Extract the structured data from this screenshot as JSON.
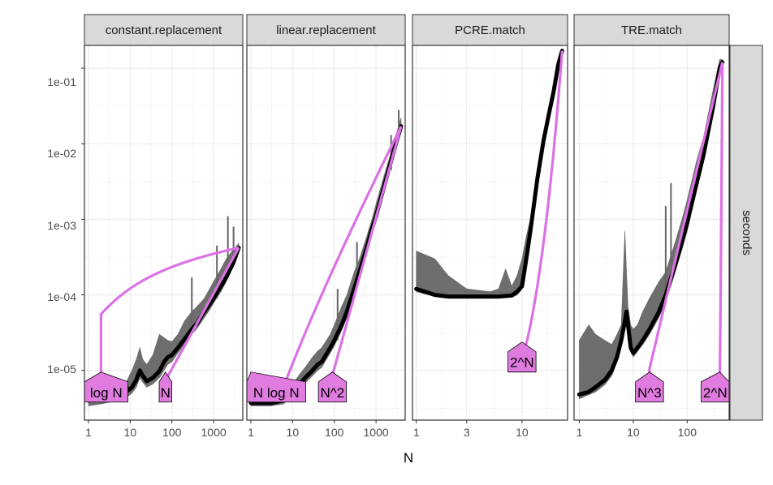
{
  "chart_data": {
    "type": "line",
    "x_axis_title": "N",
    "y_strip_label": "seconds",
    "y_ticks": [
      "1e-05",
      "1e-04",
      "1e-03",
      "1e-02",
      "1e-01"
    ],
    "y_tick_values": [
      1e-05,
      0.0001,
      0.001,
      0.01,
      0.1
    ],
    "ylim": [
      2.2e-06,
      0.2
    ],
    "y_scale": "log10",
    "grid": true,
    "colors": {
      "median_line": "#000000",
      "min_max_band": "#666666",
      "asymptote": "#dc71e6",
      "label_fill": "#e07be0"
    },
    "panels": [
      {
        "title": "constant.replacement",
        "xlim": [
          0.8,
          5000
        ],
        "x_ticks": [
          "1",
          "10",
          "100",
          "1000"
        ],
        "x_tick_values": [
          1,
          10,
          100,
          1000
        ],
        "median": [
          [
            1,
            4e-06
          ],
          [
            2,
            4.2e-06
          ],
          [
            5,
            4.6e-06
          ],
          [
            8,
            5.2e-06
          ],
          [
            11,
            6e-06
          ],
          [
            14,
            7.5e-06
          ],
          [
            17,
            1e-05
          ],
          [
            20,
            8.5e-06
          ],
          [
            25,
            7.2e-06
          ],
          [
            35,
            8e-06
          ],
          [
            50,
            9.8e-06
          ],
          [
            65,
            1.3e-05
          ],
          [
            80,
            1.5e-05
          ],
          [
            100,
            1.6e-05
          ],
          [
            140,
            2e-05
          ],
          [
            200,
            2.6e-05
          ],
          [
            300,
            3.5e-05
          ],
          [
            400,
            4.2e-05
          ],
          [
            600,
            6e-05
          ],
          [
            800,
            7.5e-05
          ],
          [
            1000,
            9e-05
          ],
          [
            1500,
            0.00013
          ],
          [
            2000,
            0.00017
          ],
          [
            3000,
            0.00027
          ],
          [
            4000,
            0.00042
          ]
        ],
        "upper": [
          [
            1,
            5e-06
          ],
          [
            2,
            5.2e-06
          ],
          [
            5,
            5.8e-06
          ],
          [
            8,
            7e-06
          ],
          [
            11,
            1e-05
          ],
          [
            14,
            1.4e-05
          ],
          [
            17,
            2e-05
          ],
          [
            20,
            1.4e-05
          ],
          [
            25,
            1.2e-05
          ],
          [
            35,
            1.6e-05
          ],
          [
            50,
            3e-05
          ],
          [
            80,
            2.5e-05
          ],
          [
            100,
            2.4e-05
          ],
          [
            140,
            3e-05
          ],
          [
            200,
            4.5e-05
          ],
          [
            300,
            6e-05
          ],
          [
            400,
            7e-05
          ],
          [
            600,
            9e-05
          ],
          [
            800,
            0.00012
          ],
          [
            1000,
            0.00015
          ],
          [
            1500,
            0.00022
          ],
          [
            2000,
            0.0003
          ],
          [
            3000,
            0.0004
          ],
          [
            4000,
            0.00048
          ]
        ],
        "lower": [
          [
            1,
            3.4e-06
          ],
          [
            2,
            3.6e-06
          ],
          [
            5,
            4e-06
          ],
          [
            8,
            4.4e-06
          ],
          [
            11,
            5e-06
          ],
          [
            14,
            6e-06
          ],
          [
            17,
            8e-06
          ],
          [
            20,
            7e-06
          ],
          [
            25,
            6e-06
          ],
          [
            35,
            6.6e-06
          ],
          [
            50,
            8e-06
          ],
          [
            80,
            1.2e-05
          ],
          [
            100,
            1.3e-05
          ],
          [
            140,
            1.7e-05
          ],
          [
            200,
            2.2e-05
          ],
          [
            300,
            3e-05
          ],
          [
            400,
            3.6e-05
          ],
          [
            600,
            5e-05
          ],
          [
            800,
            6.3e-05
          ],
          [
            1000,
            7.8e-05
          ],
          [
            1500,
            0.00011
          ],
          [
            2000,
            0.00015
          ],
          [
            3000,
            0.00024
          ],
          [
            4000,
            0.00038
          ]
        ],
        "spikes": [
          [
            300,
            0.00017
          ],
          [
            1200,
            0.00045
          ],
          [
            2200,
            0.0011
          ],
          [
            3000,
            0.0008
          ]
        ],
        "asymptotes": [
          {
            "label": "log N",
            "anchor": [
              2,
              5.8e-06
            ]
          },
          {
            "label": "N",
            "anchor": [
              70,
              5.8e-06
            ]
          }
        ]
      },
      {
        "title": "linear.replacement",
        "xlim": [
          0.8,
          5000
        ],
        "x_ticks": [
          "1",
          "10",
          "100",
          "1000"
        ],
        "x_tick_values": [
          1,
          10,
          100,
          1000
        ],
        "median": [
          [
            1,
            3.7e-06
          ],
          [
            3,
            3.7e-06
          ],
          [
            6,
            4e-06
          ],
          [
            10,
            5e-06
          ],
          [
            15,
            6.6e-06
          ],
          [
            20,
            8e-06
          ],
          [
            30,
            1e-05
          ],
          [
            40,
            1.2e-05
          ],
          [
            50,
            1.3e-05
          ],
          [
            80,
            2e-05
          ],
          [
            100,
            2.5e-05
          ],
          [
            150,
            4e-05
          ],
          [
            200,
            6e-05
          ],
          [
            300,
            0.00012
          ],
          [
            400,
            0.0002
          ],
          [
            600,
            0.00042
          ],
          [
            800,
            0.00075
          ],
          [
            1000,
            0.0011
          ],
          [
            1500,
            0.0025
          ],
          [
            2000,
            0.0045
          ],
          [
            3000,
            0.01
          ],
          [
            4000,
            0.017
          ]
        ],
        "upper": [
          [
            1,
            4.6e-06
          ],
          [
            3,
            4.6e-06
          ],
          [
            6,
            5e-06
          ],
          [
            10,
            6.5e-06
          ],
          [
            15,
            9e-06
          ],
          [
            20,
            1.1e-05
          ],
          [
            30,
            1.5e-05
          ],
          [
            40,
            1.8e-05
          ],
          [
            50,
            2e-05
          ],
          [
            80,
            3e-05
          ],
          [
            100,
            4e-05
          ],
          [
            150,
            7e-05
          ],
          [
            200,
            0.0001
          ],
          [
            300,
            0.0002
          ],
          [
            400,
            0.0003
          ],
          [
            600,
            0.0006
          ],
          [
            800,
            0.001
          ],
          [
            1000,
            0.0016
          ],
          [
            1500,
            0.0035
          ],
          [
            2000,
            0.006
          ],
          [
            3000,
            0.013
          ],
          [
            4000,
            0.022
          ]
        ],
        "lower": [
          [
            1,
            3.4e-06
          ],
          [
            3,
            3.4e-06
          ],
          [
            6,
            3.6e-06
          ],
          [
            10,
            4.4e-06
          ],
          [
            15,
            5.6e-06
          ],
          [
            20,
            6.8e-06
          ],
          [
            30,
            8.5e-06
          ],
          [
            40,
            1e-05
          ],
          [
            50,
            1.1e-05
          ],
          [
            80,
            1.7e-05
          ],
          [
            100,
            2.1e-05
          ],
          [
            150,
            3.4e-05
          ],
          [
            200,
            5e-05
          ],
          [
            300,
            0.0001
          ],
          [
            400,
            0.00017
          ],
          [
            600,
            0.00036
          ],
          [
            800,
            0.00064
          ],
          [
            1000,
            0.00095
          ],
          [
            1500,
            0.0021
          ],
          [
            2000,
            0.0038
          ],
          [
            3000,
            0.0088
          ],
          [
            4000,
            0.015
          ]
        ],
        "spikes": [
          [
            120,
            0.00012
          ],
          [
            350,
            0.0005
          ],
          [
            2300,
            0.013
          ],
          [
            3500,
            0.028
          ]
        ],
        "asymptotes": [
          {
            "label": "N log N",
            "anchor": [
              1,
              5.8e-06
            ]
          },
          {
            "label": "N^2",
            "anchor": [
              90,
              5.8e-06
            ]
          }
        ]
      },
      {
        "title": "PCRE.match",
        "xlim": [
          0.92,
          27
        ],
        "x_ticks": [
          "1",
          "3",
          "10"
        ],
        "x_tick_values": [
          1,
          3,
          10
        ],
        "median": [
          [
            1,
            0.00012
          ],
          [
            1.5,
            0.0001
          ],
          [
            2,
            9.5e-05
          ],
          [
            4,
            9.5e-05
          ],
          [
            6,
            9.5e-05
          ],
          [
            8,
            9.8e-05
          ],
          [
            9,
            0.00011
          ],
          [
            10,
            0.00013
          ],
          [
            11,
            0.0003
          ],
          [
            12,
            0.0007
          ],
          [
            13,
            0.0016
          ],
          [
            14,
            0.0035
          ],
          [
            16,
            0.011
          ],
          [
            18,
            0.025
          ],
          [
            20,
            0.05
          ],
          [
            22,
            0.11
          ],
          [
            24,
            0.17
          ]
        ],
        "upper": [
          [
            1,
            0.00038
          ],
          [
            1.5,
            0.0003
          ],
          [
            2,
            0.00018
          ],
          [
            3,
            0.00012
          ],
          [
            5,
            0.00011
          ],
          [
            6,
            0.00012
          ],
          [
            7,
            0.00022
          ],
          [
            8,
            0.00013
          ],
          [
            9,
            0.00018
          ],
          [
            10,
            0.0003
          ],
          [
            11,
            0.0006
          ],
          [
            12,
            0.001
          ],
          [
            14,
            0.004
          ],
          [
            16,
            0.012
          ],
          [
            20,
            0.055
          ],
          [
            24,
            0.18
          ]
        ],
        "lower": [
          [
            1,
            0.00011
          ],
          [
            1.5,
            9.5e-05
          ],
          [
            2,
            9e-05
          ],
          [
            4,
            9e-05
          ],
          [
            6,
            9e-05
          ],
          [
            8,
            9.3e-05
          ],
          [
            9,
            0.0001
          ],
          [
            10,
            0.00012
          ],
          [
            11,
            0.00028
          ],
          [
            12,
            0.00065
          ],
          [
            14,
            0.0032
          ],
          [
            16,
            0.01
          ],
          [
            20,
            0.046
          ],
          [
            24,
            0.15
          ]
        ],
        "spikes": [],
        "asymptotes": [
          {
            "label": "2^N",
            "anchor": [
              10,
              1.45e-05
            ]
          }
        ]
      },
      {
        "title": "TRE.match",
        "xlim": [
          0.8,
          600
        ],
        "x_ticks": [
          "1",
          "10",
          "100"
        ],
        "x_tick_values": [
          1,
          10,
          100
        ],
        "median": [
          [
            1,
            4.8e-06
          ],
          [
            1.5,
            5.2e-06
          ],
          [
            2,
            6e-06
          ],
          [
            3,
            7.5e-06
          ],
          [
            4,
            1e-05
          ],
          [
            5,
            1.5e-05
          ],
          [
            6,
            2.5e-05
          ],
          [
            7,
            4.5e-05
          ],
          [
            7.5,
            6e-05
          ],
          [
            8,
            4e-05
          ],
          [
            9,
            2e-05
          ],
          [
            10,
            1.7e-05
          ],
          [
            12,
            2e-05
          ],
          [
            15,
            2.5e-05
          ],
          [
            20,
            3.5e-05
          ],
          [
            30,
            6e-05
          ],
          [
            40,
            0.0001
          ],
          [
            60,
            0.00025
          ],
          [
            80,
            0.0005
          ],
          [
            100,
            0.0009
          ],
          [
            150,
            0.003
          ],
          [
            200,
            0.007
          ],
          [
            300,
            0.03
          ],
          [
            400,
            0.1
          ],
          [
            450,
            0.12
          ]
        ],
        "upper": [
          [
            1,
            2.5e-05
          ],
          [
            1.5,
            4e-05
          ],
          [
            2,
            3e-05
          ],
          [
            3,
            2.5e-05
          ],
          [
            4,
            2.2e-05
          ],
          [
            5,
            3e-05
          ],
          [
            6,
            4e-05
          ],
          [
            7,
            0.0007
          ],
          [
            7.5,
            0.0002
          ],
          [
            8,
            7e-05
          ],
          [
            9,
            4e-05
          ],
          [
            10,
            3.5e-05
          ],
          [
            12,
            4e-05
          ],
          [
            15,
            6e-05
          ],
          [
            20,
            9e-05
          ],
          [
            30,
            0.00015
          ],
          [
            40,
            0.0002
          ],
          [
            60,
            0.0005
          ],
          [
            80,
            0.001
          ],
          [
            100,
            0.0018
          ],
          [
            150,
            0.006
          ],
          [
            200,
            0.012
          ],
          [
            300,
            0.05
          ],
          [
            400,
            0.13
          ],
          [
            450,
            0.13
          ]
        ],
        "lower": [
          [
            1,
            4.2e-06
          ],
          [
            2,
            5.2e-06
          ],
          [
            3,
            6.5e-06
          ],
          [
            4,
            8.5e-06
          ],
          [
            5,
            1.3e-05
          ],
          [
            6,
            2.2e-05
          ],
          [
            7,
            4e-05
          ],
          [
            8,
            3.5e-05
          ],
          [
            9,
            1.8e-05
          ],
          [
            10,
            1.5e-05
          ],
          [
            15,
            2.2e-05
          ],
          [
            20,
            3e-05
          ],
          [
            30,
            5e-05
          ],
          [
            40,
            8e-05
          ],
          [
            60,
            0.0002
          ],
          [
            80,
            0.0004
          ],
          [
            100,
            0.0007
          ],
          [
            150,
            0.0025
          ],
          [
            200,
            0.006
          ],
          [
            300,
            0.025
          ],
          [
            400,
            0.08
          ],
          [
            450,
            0.1
          ]
        ],
        "spikes": [
          [
            40,
            0.0015
          ],
          [
            50,
            0.003
          ]
        ],
        "asymptotes": [
          {
            "label": "N^3",
            "anchor": [
              20,
              5.8e-06
            ]
          },
          {
            "label": "2^N",
            "anchor": [
              400,
              5.8e-06
            ]
          }
        ]
      }
    ]
  }
}
